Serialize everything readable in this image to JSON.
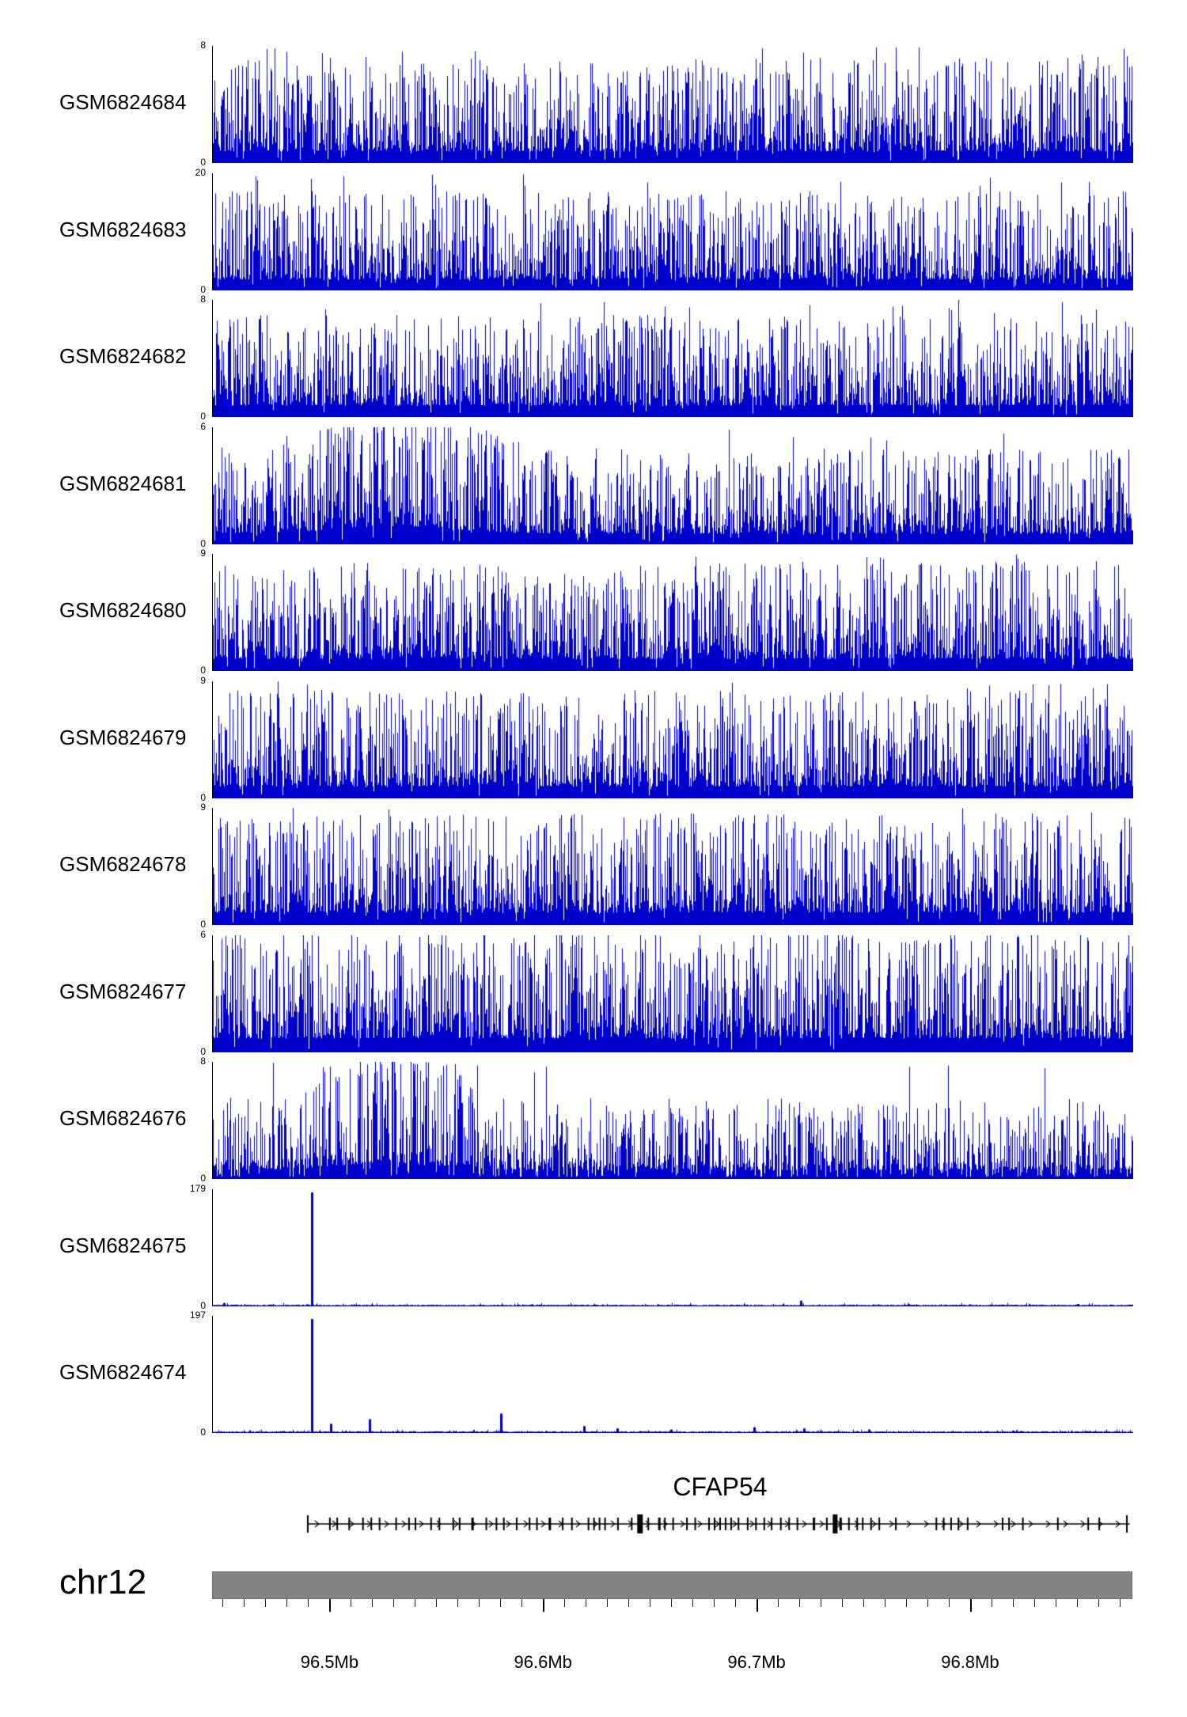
{
  "colors": {
    "signal": "#0000cc",
    "axis": "#000000",
    "gene": "#000000",
    "chromosome_bar": "#838383",
    "background": "#ffffff"
  },
  "chart_data": {
    "type": "area",
    "title": "",
    "description": "Genome browser read-coverage tracks over CFAP54 locus",
    "legend_position": "none",
    "grid": false,
    "region": {
      "chromosome_label": "chr12",
      "start_mb": 96.445,
      "end_mb": 96.876
    },
    "axis": {
      "minor_tick_interval_mb": 0.01,
      "major_ticks": [
        {
          "mb": 96.5,
          "label": "96.5Mb"
        },
        {
          "mb": 96.6,
          "label": "96.6Mb"
        },
        {
          "mb": 96.7,
          "label": "96.7Mb"
        },
        {
          "mb": 96.8,
          "label": "96.8Mb"
        }
      ]
    },
    "y_zero_label": "0",
    "tracks": [
      {
        "label": "GSM6824684",
        "ymax": 8,
        "ymin": 0,
        "style": "dense",
        "seed": 11,
        "fill": 0.34,
        "gap": 0.05
      },
      {
        "label": "GSM6824683",
        "ymax": 20,
        "ymin": 0,
        "style": "dense",
        "seed": 22,
        "fill": 0.32,
        "gap": 0.07
      },
      {
        "label": "GSM6824682",
        "ymax": 8,
        "ymin": 0,
        "style": "dense",
        "seed": 33,
        "fill": 0.33,
        "gap": 0.05
      },
      {
        "label": "GSM6824681",
        "ymax": 6,
        "ymin": 0,
        "style": "dense",
        "seed": 44,
        "fill": 0.31,
        "gap": 0.06,
        "bumps": [
          {
            "center": 0.2,
            "width": 0.09,
            "gain": 1.7
          }
        ]
      },
      {
        "label": "GSM6824680",
        "ymax": 9,
        "ymin": 0,
        "style": "dense",
        "seed": 55,
        "fill": 0.35,
        "gap": 0.05
      },
      {
        "label": "GSM6824679",
        "ymax": 9,
        "ymin": 0,
        "style": "dense",
        "seed": 66,
        "fill": 0.35,
        "gap": 0.05
      },
      {
        "label": "GSM6824678",
        "ymax": 9,
        "ymin": 0,
        "style": "dense",
        "seed": 77,
        "fill": 0.36,
        "gap": 0.05
      },
      {
        "label": "GSM6824677",
        "ymax": 6,
        "ymin": 0,
        "style": "dense",
        "seed": 88,
        "fill": 0.4,
        "gap": 0.04
      },
      {
        "label": "GSM6824676",
        "ymax": 8,
        "ymin": 0,
        "style": "dense",
        "seed": 99,
        "fill": 0.26,
        "gap": 0.22,
        "bumps": [
          {
            "center": 0.19,
            "width": 0.08,
            "gain": 1.8
          }
        ]
      },
      {
        "label": "GSM6824675",
        "ymax": 179,
        "ymin": 0,
        "style": "sparse",
        "seed": 110,
        "spikes": [
          {
            "x": 0.1075,
            "h": 1.0
          },
          {
            "x": 0.012,
            "h": 0.03
          },
          {
            "x": 0.639,
            "h": 0.05
          },
          {
            "x": 0.94,
            "h": 0.015
          }
        ]
      },
      {
        "label": "GSM6824674",
        "ymax": 197,
        "ymin": 0,
        "style": "sparse",
        "seed": 121,
        "spikes": [
          {
            "x": 0.1075,
            "h": 1.0
          },
          {
            "x": 0.128,
            "h": 0.08
          },
          {
            "x": 0.17,
            "h": 0.12
          },
          {
            "x": 0.313,
            "h": 0.17
          },
          {
            "x": 0.403,
            "h": 0.06
          },
          {
            "x": 0.439,
            "h": 0.04
          },
          {
            "x": 0.498,
            "h": 0.03
          },
          {
            "x": 0.588,
            "h": 0.05
          },
          {
            "x": 0.642,
            "h": 0.04
          },
          {
            "x": 0.713,
            "h": 0.03
          },
          {
            "x": 0.869,
            "h": 0.02
          }
        ]
      }
    ],
    "gene_track": {
      "gene_label": "CFAP54",
      "strand": "+",
      "start_frac": 0.104,
      "end_frac": 0.997,
      "exons": [
        [
          0.104,
          2
        ],
        [
          0.128,
          2
        ],
        [
          0.136,
          2
        ],
        [
          0.149,
          2
        ],
        [
          0.164,
          2
        ],
        [
          0.173,
          2
        ],
        [
          0.182,
          2
        ],
        [
          0.2,
          2
        ],
        [
          0.214,
          2
        ],
        [
          0.221,
          2
        ],
        [
          0.238,
          2
        ],
        [
          0.247,
          2
        ],
        [
          0.262,
          2
        ],
        [
          0.269,
          2
        ],
        [
          0.283,
          3
        ],
        [
          0.298,
          2
        ],
        [
          0.309,
          2
        ],
        [
          0.317,
          2
        ],
        [
          0.331,
          2
        ],
        [
          0.345,
          2
        ],
        [
          0.353,
          2
        ],
        [
          0.367,
          3
        ],
        [
          0.381,
          2
        ],
        [
          0.391,
          2
        ],
        [
          0.409,
          2
        ],
        [
          0.415,
          2
        ],
        [
          0.421,
          2
        ],
        [
          0.427,
          2
        ],
        [
          0.441,
          2
        ],
        [
          0.456,
          2
        ],
        [
          0.465,
          7
        ],
        [
          0.474,
          2
        ],
        [
          0.486,
          3
        ],
        [
          0.492,
          2
        ],
        [
          0.501,
          2
        ],
        [
          0.516,
          2
        ],
        [
          0.525,
          2
        ],
        [
          0.54,
          2
        ],
        [
          0.546,
          2
        ],
        [
          0.552,
          2
        ],
        [
          0.558,
          2
        ],
        [
          0.564,
          2
        ],
        [
          0.572,
          2
        ],
        [
          0.582,
          2
        ],
        [
          0.591,
          2
        ],
        [
          0.6,
          2
        ],
        [
          0.608,
          2
        ],
        [
          0.618,
          2
        ],
        [
          0.627,
          2
        ],
        [
          0.636,
          2
        ],
        [
          0.654,
          3
        ],
        [
          0.668,
          2
        ],
        [
          0.677,
          6
        ],
        [
          0.683,
          3
        ],
        [
          0.692,
          2
        ],
        [
          0.701,
          2
        ],
        [
          0.707,
          2
        ],
        [
          0.716,
          2
        ],
        [
          0.725,
          2
        ],
        [
          0.743,
          2
        ],
        [
          0.787,
          2
        ],
        [
          0.795,
          2
        ],
        [
          0.803,
          2
        ],
        [
          0.811,
          2
        ],
        [
          0.821,
          2
        ],
        [
          0.859,
          2
        ],
        [
          0.866,
          2
        ],
        [
          0.881,
          2
        ],
        [
          0.919,
          2
        ],
        [
          0.952,
          2
        ],
        [
          0.964,
          2
        ],
        [
          0.994,
          2
        ]
      ]
    }
  }
}
